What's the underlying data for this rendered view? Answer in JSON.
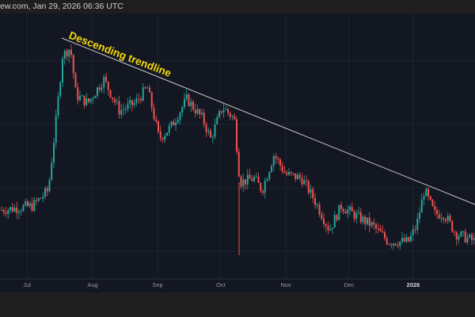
{
  "header": {
    "source": "ew.com, Jan 29, 2026 06:36 UTC"
  },
  "chart_data": {
    "type": "candlestick",
    "title": "",
    "annotation": "Descending trendline",
    "x_tick_labels": [
      "Jul",
      "Aug",
      "Sep",
      "Oct",
      "Nov",
      "Dec",
      "2026"
    ],
    "bold_tick": "2026",
    "ylim": [
      0,
      400
    ],
    "close_path": [
      [
        0,
        135
      ],
      [
        40,
        140
      ],
      [
        60,
        160
      ],
      [
        70,
        250
      ],
      [
        78,
        330
      ],
      [
        88,
        340
      ],
      [
        95,
        280
      ],
      [
        110,
        270
      ],
      [
        130,
        300
      ],
      [
        150,
        260
      ],
      [
        170,
        270
      ],
      [
        185,
        290
      ],
      [
        200,
        225
      ],
      [
        215,
        240
      ],
      [
        235,
        275
      ],
      [
        255,
        250
      ],
      [
        265,
        225
      ],
      [
        280,
        265
      ],
      [
        295,
        250
      ],
      [
        302,
        170
      ],
      [
        320,
        175
      ],
      [
        330,
        160
      ],
      [
        345,
        205
      ],
      [
        360,
        180
      ],
      [
        380,
        175
      ],
      [
        395,
        150
      ],
      [
        415,
        110
      ],
      [
        430,
        140
      ],
      [
        445,
        130
      ],
      [
        470,
        115
      ],
      [
        490,
        95
      ],
      [
        515,
        95
      ],
      [
        525,
        115
      ],
      [
        535,
        160
      ],
      [
        548,
        130
      ],
      [
        560,
        130
      ],
      [
        575,
        105
      ],
      [
        600,
        95
      ]
    ],
    "trendline": {
      "start": [
        78,
        352
      ],
      "end": [
        600,
        142
      ]
    },
    "colors": {
      "up": "#26a69a",
      "down": "#ef5350",
      "trend": "#c8c8c8",
      "label": "#f5d90a",
      "grid": "#1e2230",
      "bg": "#131722"
    }
  }
}
